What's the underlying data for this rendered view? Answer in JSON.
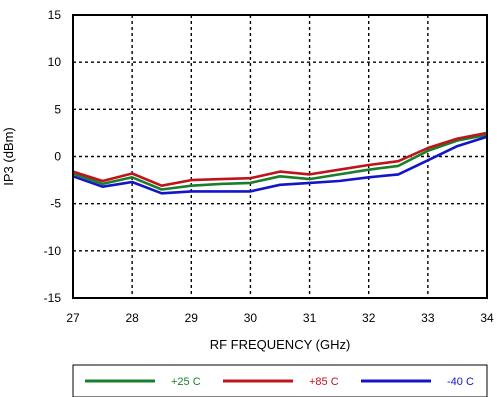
{
  "chart_data": {
    "type": "line",
    "title": "",
    "xlabel": "RF FREQUENCY (GHz)",
    "ylabel": "IP3 (dBm)",
    "xlim": [
      27,
      34
    ],
    "ylim": [
      -15,
      15
    ],
    "xticks": [
      27,
      28,
      29,
      30,
      31,
      32,
      33,
      34
    ],
    "yticks": [
      15,
      10,
      5,
      0,
      -5,
      -10,
      -15
    ],
    "grid": true,
    "legend_position": "bottom",
    "series": [
      {
        "name": "+25 C",
        "color": "#1a7f2a",
        "x": [
          27,
          27.5,
          28,
          28.5,
          29,
          29.5,
          30,
          30.5,
          31,
          31.5,
          32,
          32.5,
          33,
          33.5,
          34
        ],
        "y": [
          -1.8,
          -2.9,
          -2.2,
          -3.5,
          -3.1,
          -2.9,
          -2.8,
          -2.1,
          -2.4,
          -1.9,
          -1.4,
          -1.0,
          0.6,
          1.7,
          2.3
        ]
      },
      {
        "name": "+85 C",
        "color": "#c0141c",
        "x": [
          27,
          27.5,
          28,
          28.5,
          29,
          29.5,
          30,
          30.5,
          31,
          31.5,
          32,
          32.5,
          33,
          33.5,
          34
        ],
        "y": [
          -1.6,
          -2.6,
          -1.8,
          -3.1,
          -2.5,
          -2.4,
          -2.3,
          -1.6,
          -1.9,
          -1.4,
          -0.9,
          -0.5,
          0.9,
          1.9,
          2.5
        ]
      },
      {
        "name": "-40 C",
        "color": "#1414c8",
        "x": [
          27,
          27.5,
          28,
          28.5,
          29,
          29.5,
          30,
          30.5,
          31,
          31.5,
          32,
          32.5,
          33,
          33.5,
          34
        ],
        "y": [
          -2.1,
          -3.2,
          -2.7,
          -3.9,
          -3.7,
          -3.7,
          -3.7,
          -3.0,
          -2.8,
          -2.6,
          -2.2,
          -1.9,
          -0.4,
          1.1,
          2.1
        ]
      }
    ]
  }
}
